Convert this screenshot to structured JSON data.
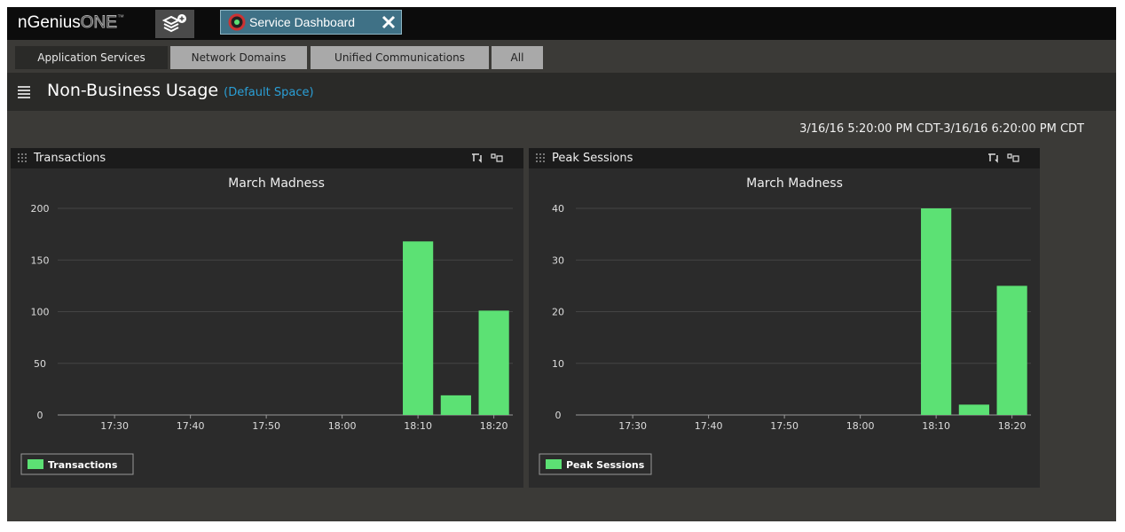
{
  "header": {
    "brand": "nGenius",
    "brand_suffix": "ONE",
    "brand_mark": "™",
    "tab": "Service Dashboard"
  },
  "nav_tabs": [
    "Application Services",
    "Network Domains",
    "Unified Communications",
    "All"
  ],
  "page": {
    "title": "Non-Business Usage",
    "space": "(Default Space)",
    "time_range": "3/16/16 5:20:00 PM CDT-3/16/16 6:20:00 PM CDT"
  },
  "panels": [
    {
      "title": "Transactions"
    },
    {
      "title": "Peak Sessions"
    }
  ],
  "chart_data": [
    {
      "type": "bar",
      "title": "March Madness",
      "categories": [
        null,
        "17:30",
        null,
        "17:40",
        null,
        "17:50",
        null,
        "18:00",
        null,
        "18:10",
        null,
        "18:20"
      ],
      "series": [
        {
          "name": "Transactions",
          "color": "#5ce174",
          "values": [
            0,
            0,
            0,
            0,
            0,
            0,
            0,
            0,
            0,
            168,
            19,
            101
          ]
        }
      ],
      "ylim": [
        0,
        200
      ],
      "yticks": [
        0,
        50,
        100,
        150,
        200
      ],
      "grid": true
    },
    {
      "type": "bar",
      "title": "March Madness",
      "categories": [
        null,
        "17:30",
        null,
        "17:40",
        null,
        "17:50",
        null,
        "18:00",
        null,
        "18:10",
        null,
        "18:20"
      ],
      "series": [
        {
          "name": "Peak Sessions",
          "color": "#5ce174",
          "values": [
            0,
            0,
            0,
            0,
            0,
            0,
            0,
            0,
            0,
            40,
            2,
            25
          ]
        }
      ],
      "ylim": [
        0,
        40
      ],
      "yticks": [
        0,
        10,
        20,
        30,
        40
      ],
      "grid": true
    }
  ]
}
